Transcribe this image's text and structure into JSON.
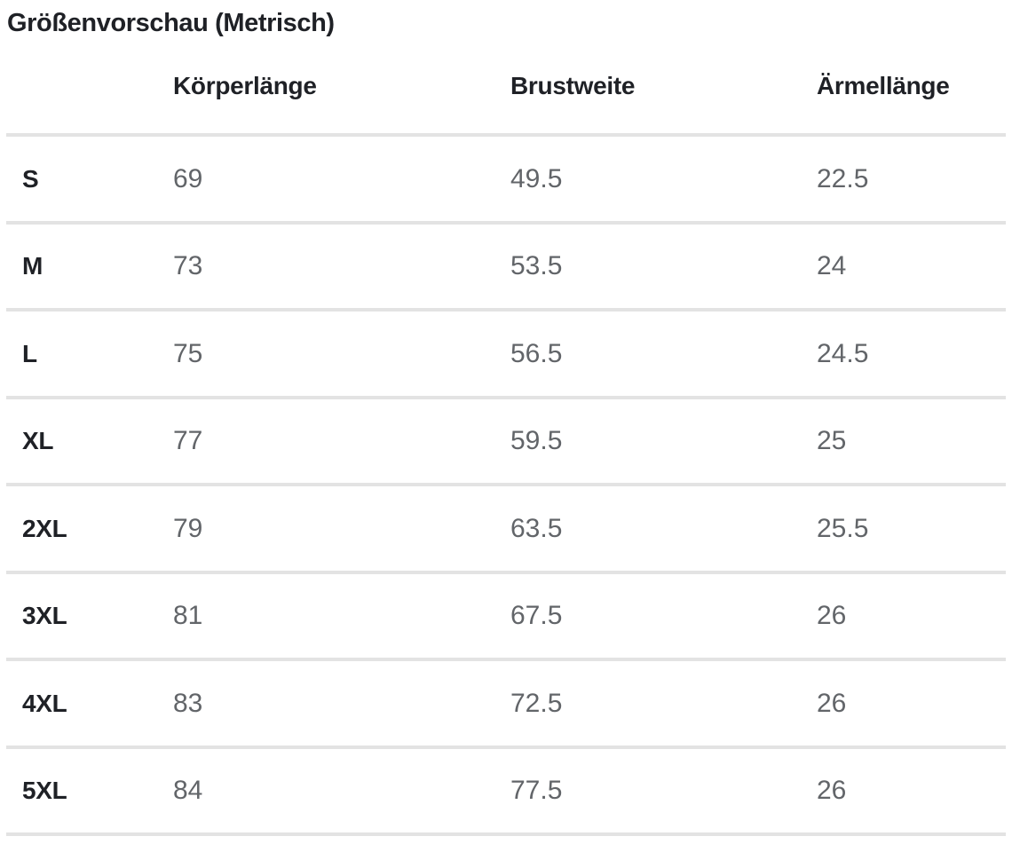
{
  "page": {
    "title": "Größenvorschau (Metrisch)"
  },
  "table": {
    "headers": [
      "Körperlänge",
      "Brustweite",
      "Ärmellänge"
    ],
    "rows": [
      {
        "size": "S",
        "koerperlaenge": "69",
        "brustweite": "49.5",
        "aermellaenge": "22.5"
      },
      {
        "size": "M",
        "koerperlaenge": "73",
        "brustweite": "53.5",
        "aermellaenge": "24"
      },
      {
        "size": "L",
        "koerperlaenge": "75",
        "brustweite": "56.5",
        "aermellaenge": "24.5"
      },
      {
        "size": "XL",
        "koerperlaenge": "77",
        "brustweite": "59.5",
        "aermellaenge": "25"
      },
      {
        "size": "2XL",
        "koerperlaenge": "79",
        "brustweite": "63.5",
        "aermellaenge": "25.5"
      },
      {
        "size": "3XL",
        "koerperlaenge": "81",
        "brustweite": "67.5",
        "aermellaenge": "26"
      },
      {
        "size": "4XL",
        "koerperlaenge": "83",
        "brustweite": "72.5",
        "aermellaenge": "26"
      },
      {
        "size": "5XL",
        "koerperlaenge": "84",
        "brustweite": "77.5",
        "aermellaenge": "26"
      }
    ]
  },
  "colors": {
    "text_primary": "#1f2126",
    "text_secondary": "#626569",
    "divider": "#e3e3e3",
    "background": "#ffffff"
  }
}
